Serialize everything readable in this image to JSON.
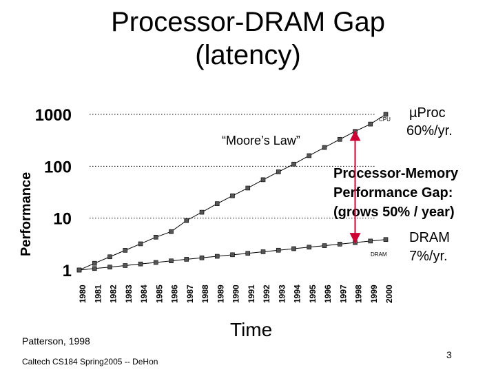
{
  "slide": {
    "title_line1": "Processor-DRAM Gap",
    "title_line2": "(latency)",
    "source_note": "Patterson, 1998",
    "course_footer": "Caltech CS184 Spring2005 -- DeHon",
    "page_number": "3"
  },
  "annotations": {
    "moores_law": "“Moore’s Law”",
    "cpu_label": "CPU",
    "dram_label": "DRAM",
    "cpu_rate_line1": "µProc",
    "cpu_rate_line2": "60%/yr.",
    "dram_rate_line1": "DRAM",
    "dram_rate_line2": "7%/yr.",
    "gap_line1": "Processor-Memory",
    "gap_line2": "Performance Gap:",
    "gap_line3": "(grows 50% / year)"
  },
  "chart_data": {
    "type": "line",
    "xlabel": "Time",
    "ylabel": "Performance",
    "yscale": "log",
    "ylim": [
      1,
      1000
    ],
    "yticks": [
      "1",
      "10",
      "100",
      "1000"
    ],
    "categories": [
      "1980",
      "1981",
      "1982",
      "1983",
      "1984",
      "1985",
      "1986",
      "1987",
      "1988",
      "1989",
      "1990",
      "1991",
      "1992",
      "1993",
      "1994",
      "1995",
      "1996",
      "1997",
      "1998",
      "1999",
      "2000"
    ],
    "grid": "dotted horizontal lines at 10, 100, 1000",
    "series": [
      {
        "name": "CPU",
        "marker": "square",
        "values": [
          1,
          1.35,
          1.8,
          2.4,
          3.2,
          4.3,
          5.5,
          9,
          13,
          19,
          27,
          38,
          55,
          78,
          110,
          160,
          230,
          330,
          470,
          650,
          1000
        ]
      },
      {
        "name": "DRAM",
        "marker": "square",
        "values": [
          1,
          1.07,
          1.14,
          1.22,
          1.31,
          1.4,
          1.5,
          1.61,
          1.72,
          1.84,
          1.97,
          2.1,
          2.25,
          2.41,
          2.58,
          2.76,
          2.95,
          3.16,
          3.38,
          3.62,
          3.87
        ]
      }
    ],
    "gap_arrow_year": "1998"
  }
}
